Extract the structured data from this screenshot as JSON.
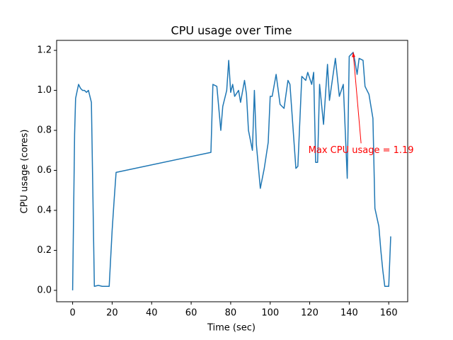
{
  "chart_data": {
    "type": "line",
    "title": "CPU usage over Time",
    "xlabel": "Time (sec)",
    "ylabel": "CPU usage (cores)",
    "x": [
      0,
      1,
      1.5,
      3,
      4,
      5,
      6,
      7,
      8,
      9.5,
      11,
      13,
      15,
      17,
      18.5,
      20,
      21,
      22,
      70,
      71,
      73,
      75,
      76,
      78,
      79,
      80,
      81,
      82,
      84,
      85,
      87,
      88,
      89,
      91,
      92,
      93,
      95,
      97,
      99,
      100,
      101,
      103,
      105,
      107,
      109,
      110,
      113,
      114,
      116,
      118,
      119,
      121,
      122,
      123,
      124,
      125,
      127,
      129,
      130,
      133,
      135,
      137,
      139,
      140,
      142,
      143,
      144,
      145,
      147,
      148,
      150,
      152,
      153,
      155,
      156,
      157,
      158,
      160,
      161
    ],
    "values": [
      0.0,
      0.78,
      0.96,
      1.03,
      1.01,
      1.0,
      1.0,
      0.99,
      1.0,
      0.94,
      0.02,
      0.025,
      0.02,
      0.02,
      0.02,
      0.3,
      0.45,
      0.59,
      0.69,
      1.03,
      1.02,
      0.8,
      0.92,
      1.0,
      1.15,
      0.99,
      1.03,
      0.97,
      1.0,
      0.94,
      1.05,
      0.98,
      0.8,
      0.7,
      1.0,
      0.73,
      0.51,
      0.61,
      0.74,
      0.97,
      0.97,
      1.08,
      0.93,
      0.91,
      1.05,
      1.03,
      0.61,
      0.62,
      1.07,
      1.05,
      1.09,
      1.03,
      1.09,
      0.64,
      0.64,
      1.03,
      0.83,
      1.13,
      0.95,
      1.16,
      0.97,
      1.03,
      0.56,
      1.17,
      1.19,
      1.14,
      1.08,
      1.16,
      1.15,
      1.02,
      0.98,
      0.86,
      0.41,
      0.32,
      0.2,
      0.1,
      0.02,
      0.02,
      0.27
    ],
    "color": "#1f77b4",
    "xlim": [
      -8.1,
      169.6
    ],
    "ylim": [
      -0.057,
      1.25
    ],
    "xticks": [
      0,
      20,
      40,
      60,
      80,
      100,
      120,
      140,
      160
    ],
    "yticks": [
      {
        "value": 0,
        "label": "0.0"
      },
      0.2,
      0.4,
      0.6,
      0.8,
      {
        "value": 1,
        "label": "1.0"
      },
      1.2
    ],
    "annotation": {
      "text": "Max CPU usage = 1.19",
      "xy": [
        142,
        1.19
      ],
      "xytext": [
        146,
        0.7
      ],
      "color": "red"
    }
  }
}
